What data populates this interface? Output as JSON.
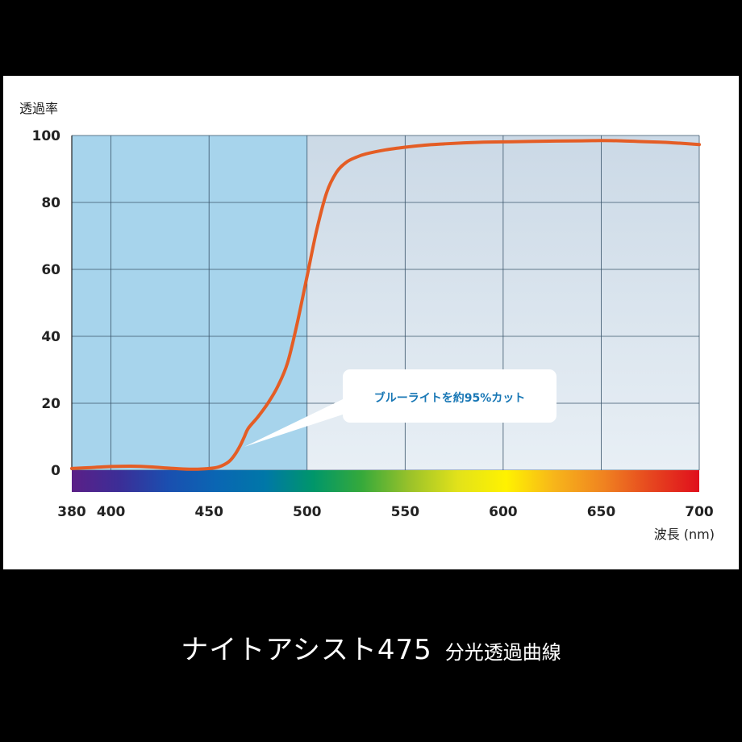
{
  "caption": {
    "main": "ナイトアシスト475",
    "sub": "分光透過曲線"
  },
  "chart_data": {
    "type": "line",
    "ylabel": "透過率",
    "xlabel": "波長 (nm)",
    "xlim": [
      380,
      700
    ],
    "ylim": [
      0,
      100
    ],
    "x_ticks": [
      "380",
      "400",
      "450",
      "500",
      "550",
      "600",
      "650",
      "700"
    ],
    "y_ticks": [
      "0",
      "20",
      "40",
      "60",
      "80",
      "100"
    ],
    "grid": true,
    "highlight_range": [
      380,
      500
    ],
    "annotation": {
      "text": "ブルーライトを約95%カット",
      "x": 468,
      "y": 7
    },
    "series": [
      {
        "x": [
          380,
          390,
          400,
          410,
          420,
          430,
          440,
          450,
          455,
          460,
          463,
          466,
          468,
          470,
          475,
          480,
          485,
          490,
          495,
          500,
          505,
          510,
          515,
          520,
          525,
          530,
          540,
          550,
          560,
          570,
          580,
          590,
          600,
          620,
          640,
          650,
          660,
          670,
          680,
          690,
          700
        ],
        "y": [
          0.5,
          0.8,
          1.1,
          1.2,
          1.0,
          0.6,
          0.3,
          0.5,
          1.0,
          2.5,
          4.5,
          7.5,
          10,
          12.5,
          16,
          20,
          25,
          32,
          44,
          58,
          72,
          83,
          89,
          92,
          93.5,
          94.5,
          95.7,
          96.5,
          97.1,
          97.5,
          97.8,
          98.0,
          98.1,
          98.3,
          98.4,
          98.5,
          98.4,
          98.2,
          98.0,
          97.7,
          97.3
        ],
        "color": "#e45d25"
      }
    ],
    "colors": {
      "highlight": "#a7d4ec",
      "background": "#dfe9f2",
      "grid": "#39546a",
      "spectrum": [
        "#5b1f87",
        "#3b2e97",
        "#1a4fb0",
        "#0a66b3",
        "#0077a8",
        "#00966a",
        "#35a93b",
        "#9ac22a",
        "#e2e21a",
        "#fff200",
        "#f7b51a",
        "#f08420",
        "#e6461f",
        "#e00f1c"
      ]
    }
  }
}
